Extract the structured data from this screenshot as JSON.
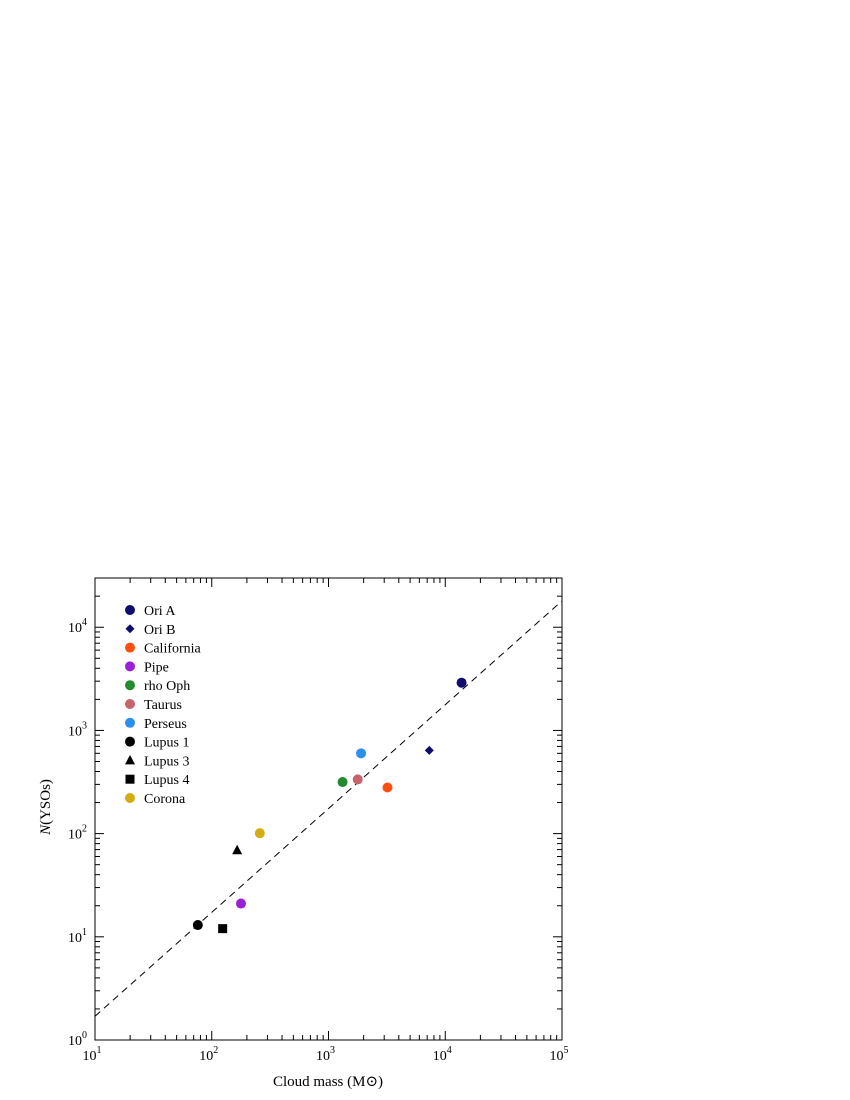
{
  "chart_data": {
    "type": "scatter",
    "title": "",
    "xlabel": "Cloud mass (M⊙)",
    "ylabel_italic": "N",
    "ylabel_rest": "(YSOs)",
    "xscale": "log",
    "yscale": "log",
    "xlim": [
      10,
      100000
    ],
    "ylim": [
      1,
      30000
    ],
    "x_ticks": [
      {
        "value": 10,
        "mantissa": "10",
        "exponent": "1"
      },
      {
        "value": 100,
        "mantissa": "10",
        "exponent": "2"
      },
      {
        "value": 1000,
        "mantissa": "10",
        "exponent": "3"
      },
      {
        "value": 10000,
        "mantissa": "10",
        "exponent": "4"
      },
      {
        "value": 100000,
        "mantissa": "10",
        "exponent": "5"
      }
    ],
    "y_ticks": [
      {
        "value": 1,
        "mantissa": "10",
        "exponent": "0"
      },
      {
        "value": 10,
        "mantissa": "10",
        "exponent": "1"
      },
      {
        "value": 100,
        "mantissa": "10",
        "exponent": "2"
      },
      {
        "value": 1000,
        "mantissa": "10",
        "exponent": "3"
      },
      {
        "value": 10000,
        "mantissa": "10",
        "exponent": "4"
      }
    ],
    "legend_position": "top-left",
    "grid": false,
    "fit_line": {
      "style": "dashed",
      "x": [
        10,
        100000
      ],
      "y": [
        1.7,
        18000
      ]
    },
    "series": [
      {
        "name": "Ori A",
        "marker": "circle",
        "color": "#0d0d6e",
        "x": 13800,
        "y": 2900
      },
      {
        "name": "Ori B",
        "marker": "diamond",
        "color": "#0d0d6e",
        "x": 7300,
        "y": 640
      },
      {
        "name": "California",
        "marker": "circle",
        "color": "#ff4e12",
        "x": 3200,
        "y": 280
      },
      {
        "name": "Pipe",
        "marker": "circle",
        "color": "#9b1fd6",
        "x": 178,
        "y": 21
      },
      {
        "name": "rho Oph",
        "marker": "circle",
        "color": "#238a2e",
        "x": 1320,
        "y": 316
      },
      {
        "name": "Taurus",
        "marker": "circle",
        "color": "#c7636b",
        "x": 1780,
        "y": 335
      },
      {
        "name": "Perseus",
        "marker": "circle",
        "color": "#2b8ff0",
        "x": 1900,
        "y": 600
      },
      {
        "name": "Lupus 1",
        "marker": "circle",
        "color": "#000000",
        "x": 76,
        "y": 13
      },
      {
        "name": "Lupus 3",
        "marker": "triangle",
        "color": "#000000",
        "x": 165,
        "y": 69
      },
      {
        "name": "Lupus 4",
        "marker": "square",
        "color": "#000000",
        "x": 124,
        "y": 12
      },
      {
        "name": "Corona",
        "marker": "circle",
        "color": "#d4ac12",
        "x": 258,
        "y": 101
      }
    ]
  }
}
